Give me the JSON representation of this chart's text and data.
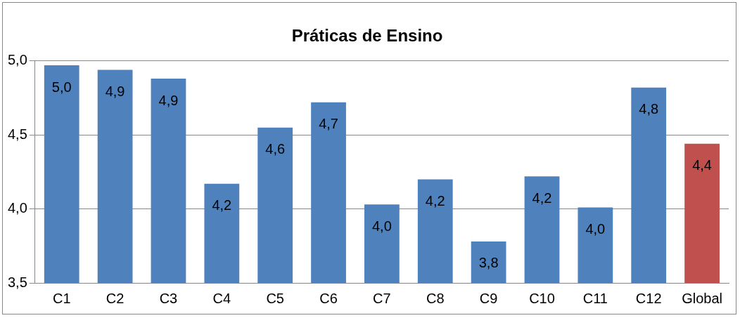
{
  "chart_data": {
    "type": "bar",
    "title": "Práticas de Ensino",
    "categories": [
      "C1",
      "C2",
      "C3",
      "C4",
      "C5",
      "C6",
      "C7",
      "C8",
      "C9",
      "C10",
      "C11",
      "C12",
      "Global"
    ],
    "values": [
      4.97,
      4.94,
      4.88,
      4.17,
      4.55,
      4.72,
      4.03,
      4.2,
      3.78,
      4.22,
      4.01,
      4.82,
      4.44
    ],
    "colors": [
      "#4f81bd",
      "#4f81bd",
      "#4f81bd",
      "#4f81bd",
      "#4f81bd",
      "#4f81bd",
      "#4f81bd",
      "#4f81bd",
      "#4f81bd",
      "#4f81bd",
      "#4f81bd",
      "#4f81bd",
      "#c0504d"
    ],
    "value_labels": [
      "5,0",
      "4,9",
      "4,9",
      "4,2",
      "4,6",
      "4,7",
      "4,0",
      "4,2",
      "3,8",
      "4,2",
      "4,0",
      "4,8",
      "4,4"
    ],
    "ylim": [
      3.5,
      5.0
    ],
    "yticks": [
      {
        "value": 3.5,
        "label": "3,5"
      },
      {
        "value": 4.0,
        "label": "4,0"
      },
      {
        "value": 4.5,
        "label": "4,5"
      },
      {
        "value": 5.0,
        "label": "5,0"
      }
    ],
    "grid": "y",
    "legend": false
  }
}
